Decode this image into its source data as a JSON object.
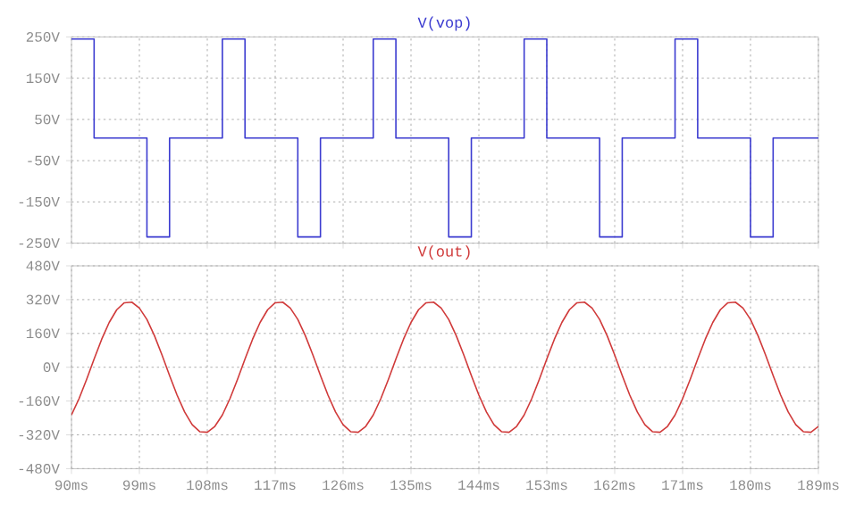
{
  "chart_data": [
    {
      "type": "step",
      "title": "V(vop)",
      "x": [
        90,
        93,
        100,
        103,
        110,
        113,
        120,
        123,
        130,
        133,
        140,
        143,
        150,
        153,
        160,
        163,
        170,
        173,
        180,
        183,
        189
      ],
      "series": [
        {
          "color": "#3b3bd0",
          "values": [
            245,
            5,
            -235,
            5,
            245,
            5,
            -235,
            5,
            245,
            5,
            -235,
            5,
            245,
            5,
            -235,
            5,
            245,
            5,
            -235,
            5,
            5
          ]
        }
      ],
      "xlim": [
        90,
        189
      ],
      "xticks": [
        {
          "value": 90,
          "label": null
        },
        {
          "value": 99,
          "label": null
        },
        {
          "value": 108,
          "label": null
        },
        {
          "value": 117,
          "label": null
        },
        {
          "value": 126,
          "label": null
        },
        {
          "value": 135,
          "label": null
        },
        {
          "value": 144,
          "label": null
        },
        {
          "value": 153,
          "label": null
        },
        {
          "value": 162,
          "label": null
        },
        {
          "value": 171,
          "label": null
        },
        {
          "value": 180,
          "label": null
        },
        {
          "value": 189,
          "label": null
        }
      ],
      "ylim": [
        -250,
        250
      ],
      "yticks": [
        {
          "value": -250,
          "label": "-250V"
        },
        {
          "value": -150,
          "label": "-150V"
        },
        {
          "value": -50,
          "label": "-50V"
        },
        {
          "value": 50,
          "label": "50V"
        },
        {
          "value": 150,
          "label": "150V"
        },
        {
          "value": 250,
          "label": "250V"
        }
      ],
      "grid": true,
      "tick_labels": "y"
    },
    {
      "type": "line",
      "title": "V(out)",
      "x": [
        90,
        91,
        92,
        93,
        94,
        95,
        96,
        97,
        98,
        99,
        100,
        101,
        102,
        103,
        104,
        105,
        106,
        107,
        108,
        109,
        110,
        111,
        112,
        113,
        114,
        115,
        116,
        117,
        118,
        119,
        120,
        121,
        122,
        123,
        124,
        125,
        126,
        127,
        128,
        129,
        130,
        131,
        132,
        133,
        134,
        135,
        136,
        137,
        138,
        139,
        140,
        141,
        142,
        143,
        144,
        145,
        146,
        147,
        148,
        149,
        150,
        151,
        152,
        153,
        154,
        155,
        156,
        157,
        158,
        159,
        160,
        161,
        162,
        163,
        164,
        165,
        166,
        167,
        168,
        169,
        170,
        171,
        172,
        173,
        174,
        175,
        176,
        177,
        178,
        179,
        180,
        181,
        182,
        183,
        184,
        185,
        186,
        187,
        188,
        189
      ],
      "series": [
        {
          "color": "#d03a3a",
          "values": [
            -226,
            -149,
            -58,
            39,
            132,
            212,
            272,
            305,
            308,
            280,
            226,
            149,
            58,
            -39,
            -132,
            -212,
            -272,
            -305,
            -308,
            -280,
            -226,
            -149,
            -58,
            39,
            132,
            212,
            272,
            305,
            308,
            280,
            226,
            149,
            58,
            -39,
            -132,
            -212,
            -272,
            -305,
            -308,
            -280,
            -226,
            -149,
            -58,
            39,
            132,
            212,
            272,
            305,
            308,
            280,
            226,
            149,
            58,
            -39,
            -132,
            -212,
            -272,
            -305,
            -308,
            -280,
            -226,
            -149,
            -58,
            39,
            132,
            212,
            272,
            305,
            308,
            280,
            226,
            149,
            58,
            -39,
            -132,
            -212,
            -272,
            -305,
            -308,
            -280,
            -226,
            -149,
            -58,
            39,
            132,
            212,
            272,
            305,
            308,
            280,
            226,
            149,
            58,
            -39,
            -132,
            -212,
            -272,
            -305,
            -308,
            -280
          ]
        }
      ],
      "xlim": [
        90,
        189
      ],
      "xticks": [
        {
          "value": 90,
          "label": "90ms"
        },
        {
          "value": 99,
          "label": "99ms"
        },
        {
          "value": 108,
          "label": "108ms"
        },
        {
          "value": 117,
          "label": "117ms"
        },
        {
          "value": 126,
          "label": "126ms"
        },
        {
          "value": 135,
          "label": "135ms"
        },
        {
          "value": 144,
          "label": "144ms"
        },
        {
          "value": 153,
          "label": "153ms"
        },
        {
          "value": 162,
          "label": "162ms"
        },
        {
          "value": 171,
          "label": "171ms"
        },
        {
          "value": 180,
          "label": "180ms"
        },
        {
          "value": 189,
          "label": "189ms"
        }
      ],
      "ylim": [
        -480,
        480
      ],
      "yticks": [
        {
          "value": -480,
          "label": "-480V"
        },
        {
          "value": -320,
          "label": "-320V"
        },
        {
          "value": -160,
          "label": "-160V"
        },
        {
          "value": 0,
          "label": "0V"
        },
        {
          "value": 160,
          "label": "160V"
        },
        {
          "value": 320,
          "label": "320V"
        },
        {
          "value": 480,
          "label": "480V"
        }
      ],
      "grid": true
    }
  ]
}
